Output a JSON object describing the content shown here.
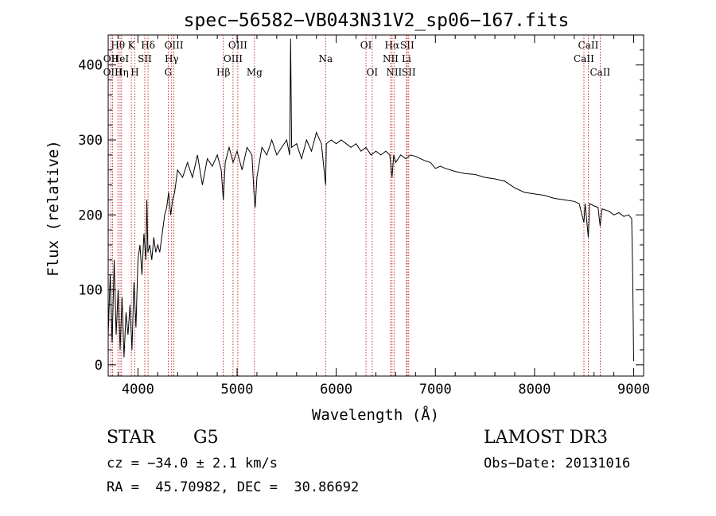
{
  "chart_data": {
    "type": "line",
    "title": "spec−56582−VB043N31V2_sp06−167.fits",
    "xlabel": "Wavelength (Å)",
    "ylabel": "Flux (relative)",
    "xlim": [
      3700,
      9100
    ],
    "ylim": [
      -15,
      440
    ],
    "x_ticks": [
      4000,
      5000,
      6000,
      7000,
      8000,
      9000
    ],
    "x_tick_labels": [
      "4000",
      "5000",
      "6000",
      "7000",
      "8000",
      "9000"
    ],
    "y_ticks": [
      0,
      100,
      200,
      300,
      400
    ],
    "y_tick_labels": [
      "0",
      "100",
      "200",
      "300",
      "400"
    ],
    "series": [
      {
        "name": "flux",
        "color": "#000000",
        "points": [
          [
            3700,
            40
          ],
          [
            3720,
            120
          ],
          [
            3740,
            30
          ],
          [
            3760,
            140
          ],
          [
            3780,
            40
          ],
          [
            3800,
            100
          ],
          [
            3820,
            20
          ],
          [
            3840,
            90
          ],
          [
            3860,
            10
          ],
          [
            3880,
            70
          ],
          [
            3900,
            40
          ],
          [
            3920,
            80
          ],
          [
            3940,
            20
          ],
          [
            3960,
            110
          ],
          [
            3980,
            50
          ],
          [
            4000,
            140
          ],
          [
            4020,
            160
          ],
          [
            4040,
            120
          ],
          [
            4060,
            175
          ],
          [
            4080,
            140
          ],
          [
            4090,
            220
          ],
          [
            4100,
            150
          ],
          [
            4120,
            160
          ],
          [
            4140,
            140
          ],
          [
            4160,
            170
          ],
          [
            4180,
            150
          ],
          [
            4200,
            160
          ],
          [
            4220,
            150
          ],
          [
            4250,
            180
          ],
          [
            4270,
            200
          ],
          [
            4290,
            210
          ],
          [
            4310,
            230
          ],
          [
            4330,
            200
          ],
          [
            4350,
            220
          ],
          [
            4370,
            230
          ],
          [
            4400,
            260
          ],
          [
            4450,
            250
          ],
          [
            4500,
            270
          ],
          [
            4550,
            250
          ],
          [
            4600,
            280
          ],
          [
            4650,
            240
          ],
          [
            4700,
            275
          ],
          [
            4750,
            265
          ],
          [
            4800,
            280
          ],
          [
            4840,
            260
          ],
          [
            4861,
            220
          ],
          [
            4880,
            270
          ],
          [
            4920,
            290
          ],
          [
            4960,
            270
          ],
          [
            5000,
            285
          ],
          [
            5050,
            260
          ],
          [
            5100,
            290
          ],
          [
            5150,
            280
          ],
          [
            5170,
            230
          ],
          [
            5183,
            210
          ],
          [
            5200,
            250
          ],
          [
            5250,
            290
          ],
          [
            5300,
            280
          ],
          [
            5350,
            300
          ],
          [
            5400,
            280
          ],
          [
            5450,
            290
          ],
          [
            5500,
            300
          ],
          [
            5530,
            280
          ],
          [
            5540,
            435
          ],
          [
            5550,
            290
          ],
          [
            5600,
            295
          ],
          [
            5650,
            275
          ],
          [
            5700,
            300
          ],
          [
            5750,
            285
          ],
          [
            5800,
            310
          ],
          [
            5850,
            295
          ],
          [
            5893,
            240
          ],
          [
            5900,
            295
          ],
          [
            5950,
            300
          ],
          [
            6000,
            295
          ],
          [
            6050,
            300
          ],
          [
            6100,
            295
          ],
          [
            6150,
            290
          ],
          [
            6200,
            295
          ],
          [
            6250,
            285
          ],
          [
            6300,
            290
          ],
          [
            6350,
            280
          ],
          [
            6400,
            285
          ],
          [
            6450,
            280
          ],
          [
            6500,
            285
          ],
          [
            6540,
            280
          ],
          [
            6563,
            250
          ],
          [
            6580,
            280
          ],
          [
            6600,
            270
          ],
          [
            6650,
            280
          ],
          [
            6700,
            275
          ],
          [
            6750,
            280
          ],
          [
            6800,
            278
          ],
          [
            6850,
            275
          ],
          [
            6900,
            272
          ],
          [
            6950,
            270
          ],
          [
            7000,
            262
          ],
          [
            7050,
            265
          ],
          [
            7100,
            262
          ],
          [
            7200,
            258
          ],
          [
            7300,
            255
          ],
          [
            7400,
            254
          ],
          [
            7500,
            250
          ],
          [
            7600,
            248
          ],
          [
            7700,
            245
          ],
          [
            7800,
            236
          ],
          [
            7900,
            230
          ],
          [
            8000,
            228
          ],
          [
            8100,
            226
          ],
          [
            8200,
            222
          ],
          [
            8300,
            220
          ],
          [
            8400,
            218
          ],
          [
            8450,
            215
          ],
          [
            8498,
            190
          ],
          [
            8510,
            215
          ],
          [
            8542,
            170
          ],
          [
            8555,
            215
          ],
          [
            8600,
            212
          ],
          [
            8640,
            210
          ],
          [
            8662,
            185
          ],
          [
            8680,
            208
          ],
          [
            8750,
            205
          ],
          [
            8800,
            200
          ],
          [
            8850,
            203
          ],
          [
            8900,
            198
          ],
          [
            8950,
            200
          ],
          [
            8980,
            195
          ],
          [
            8990,
            120
          ],
          [
            9000,
            5
          ]
        ]
      }
    ],
    "lines": [
      {
        "label": "Hθ",
        "wavelength": 3798,
        "row": 1
      },
      {
        "label": "OII",
        "wavelength": 3727,
        "row": 2
      },
      {
        "label": "OIII",
        "wavelength": 3745,
        "row": 3
      },
      {
        "label": "HeI",
        "wavelength": 3820,
        "row": 2
      },
      {
        "label": "Hη",
        "wavelength": 3835,
        "row": 3
      },
      {
        "label": "K",
        "wavelength": 3934,
        "row": 1
      },
      {
        "label": "SII",
        "wavelength": 4069,
        "row": 2
      },
      {
        "label": "H",
        "wavelength": 3969,
        "row": 3
      },
      {
        "label": "Hδ",
        "wavelength": 4102,
        "row": 1
      },
      {
        "label": "OIII",
        "wavelength": 4363,
        "row": 1
      },
      {
        "label": "Hγ",
        "wavelength": 4340,
        "row": 2
      },
      {
        "label": "G",
        "wavelength": 4305,
        "row": 3
      },
      {
        "label": "Hβ",
        "wavelength": 4861,
        "row": 3
      },
      {
        "label": "OIII",
        "wavelength": 5007,
        "row": 1
      },
      {
        "label": "OIII",
        "wavelength": 4959,
        "row": 2
      },
      {
        "label": "Mg",
        "wavelength": 5175,
        "row": 3
      },
      {
        "label": "Na",
        "wavelength": 5893,
        "row": 2
      },
      {
        "label": "OI",
        "wavelength": 6300,
        "row": 1
      },
      {
        "label": "OI",
        "wavelength": 6363,
        "row": 3
      },
      {
        "label": "Hα",
        "wavelength": 6563,
        "row": 1
      },
      {
        "label": "SII",
        "wavelength": 6716,
        "row": 1
      },
      {
        "label": "NII",
        "wavelength": 6548,
        "row": 2
      },
      {
        "label": "Li",
        "wavelength": 6708,
        "row": 2
      },
      {
        "label": "NII",
        "wavelength": 6583,
        "row": 3
      },
      {
        "label": "SII",
        "wavelength": 6731,
        "row": 3
      },
      {
        "label": "CaII",
        "wavelength": 8542,
        "row": 1
      },
      {
        "label": "CaII",
        "wavelength": 8498,
        "row": 2
      },
      {
        "label": "CaII",
        "wavelength": 8662,
        "row": 3
      }
    ]
  },
  "info": {
    "object_class": "STAR",
    "subclass": "G5",
    "survey": "LAMOST DR3",
    "cz": "cz = −34.0 ± 2.1 km/s",
    "obs_date": "Obs−Date: 20131016",
    "coords": "RA =  45.70982, DEC =  30.86692"
  }
}
